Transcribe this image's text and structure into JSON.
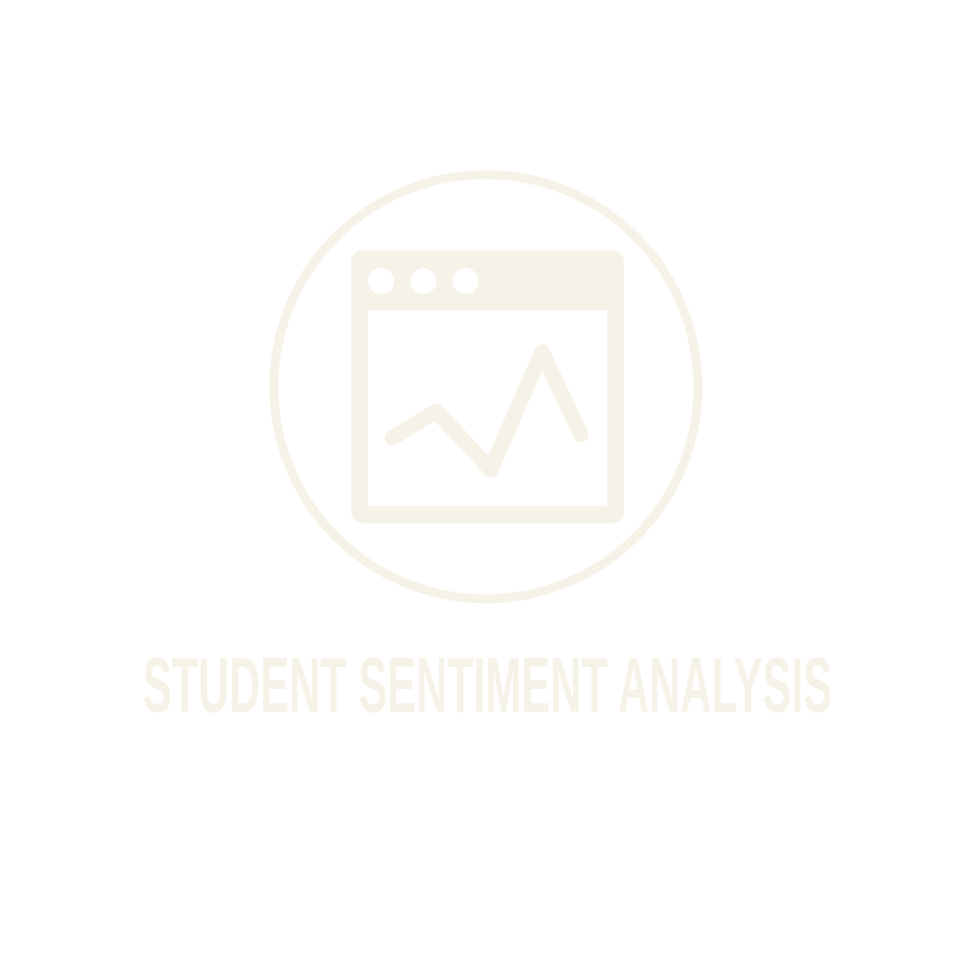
{
  "logo": {
    "title": "STUDENT SENTIMENT ANALYSIS",
    "icon": "browser-window-line-chart-icon",
    "color": "#f6f2e8",
    "background": "#ffffff"
  }
}
